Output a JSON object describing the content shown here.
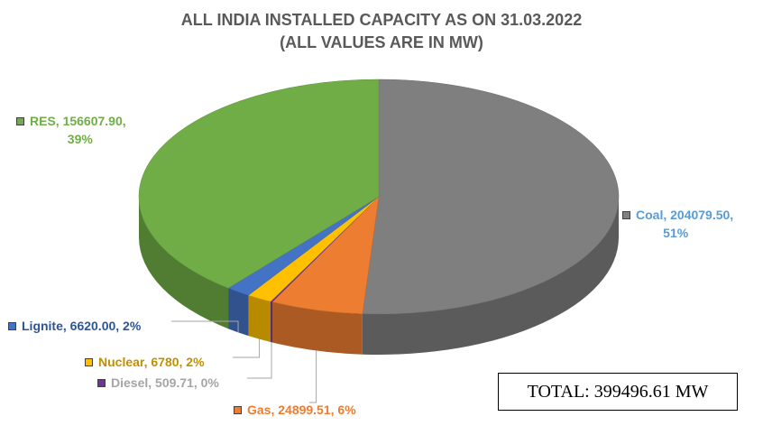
{
  "title": {
    "line1": "ALL INDIA INSTALLED CAPACITY AS ON 31.03.2022",
    "line2": "(ALL VALUES ARE IN MW)"
  },
  "total_label": "TOTAL: 399496.61 MW",
  "chart_data": {
    "type": "pie",
    "style": "3d",
    "title": "ALL INDIA INSTALLED CAPACITY AS ON 31.03.2022 (ALL VALUES ARE IN MW)",
    "slices": [
      {
        "name": "Coal",
        "value": 204079.5,
        "percent": 51,
        "color": "#7f7f7f",
        "label": "Coal, 204079.50,",
        "label2": "51%"
      },
      {
        "name": "Gas",
        "value": 24899.51,
        "percent": 6,
        "color": "#ed7d31",
        "label": "Gas, 24899.51, 6%"
      },
      {
        "name": "Diesel",
        "value": 509.71,
        "percent": 0,
        "color": "#7030a0",
        "label": "Diesel, 509.71, 0%"
      },
      {
        "name": "Nuclear",
        "value": 6780,
        "percent": 2,
        "color": "#ffc000",
        "label": "Nuclear, 6780, 2%"
      },
      {
        "name": "Lignite",
        "value": 6620.0,
        "percent": 2,
        "color": "#4472c4",
        "label": "Lignite, 6620.00, 2%"
      },
      {
        "name": "RES",
        "value": 156607.9,
        "percent": 39,
        "color": "#70ad47",
        "label": "RES, 156607.90,",
        "label2": "39%"
      }
    ]
  }
}
